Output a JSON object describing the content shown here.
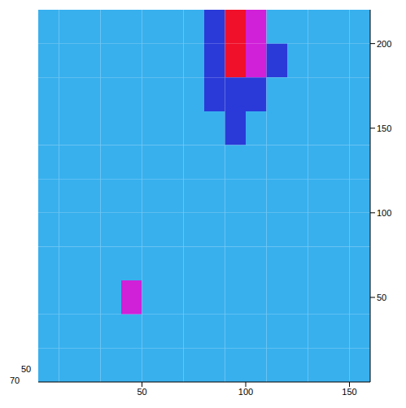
{
  "chart_data": {
    "type": "heatmap",
    "xlim": [
      0,
      160
    ],
    "ylim": [
      0,
      220
    ],
    "xticks": [
      50,
      100,
      150
    ],
    "yticks": [
      50,
      100,
      150,
      200
    ],
    "x_edges": [
      0,
      10,
      20,
      30,
      40,
      50,
      60,
      70,
      80,
      90,
      100,
      110,
      120,
      130,
      140,
      150,
      160
    ],
    "y_edges": [
      220,
      200,
      180,
      160,
      140,
      120,
      100,
      80,
      60,
      40,
      20,
      0
    ],
    "cells": [
      [
        0.45,
        0.45,
        0.45,
        0.45,
        0.45,
        0.45,
        0.45,
        0.45,
        0.2,
        1.0,
        0.8,
        0.45,
        0.45,
        0.45,
        0.45,
        0.45
      ],
      [
        0.45,
        0.45,
        0.45,
        0.45,
        0.45,
        0.45,
        0.45,
        0.45,
        0.2,
        1.0,
        0.8,
        0.2,
        0.45,
        0.45,
        0.45,
        0.45
      ],
      [
        0.45,
        0.45,
        0.45,
        0.45,
        0.45,
        0.45,
        0.45,
        0.45,
        0.2,
        0.2,
        0.2,
        0.45,
        0.45,
        0.45,
        0.45,
        0.45
      ],
      [
        0.45,
        0.45,
        0.45,
        0.45,
        0.45,
        0.45,
        0.45,
        0.45,
        0.45,
        0.2,
        0.45,
        0.45,
        0.45,
        0.45,
        0.45,
        0.45
      ],
      [
        0.45,
        0.45,
        0.45,
        0.45,
        0.45,
        0.45,
        0.45,
        0.45,
        0.45,
        0.45,
        0.45,
        0.45,
        0.45,
        0.45,
        0.45,
        0.45
      ],
      [
        0.45,
        0.45,
        0.45,
        0.45,
        0.45,
        0.45,
        0.45,
        0.45,
        0.45,
        0.45,
        0.45,
        0.45,
        0.45,
        0.45,
        0.45,
        0.45
      ],
      [
        0.45,
        0.45,
        0.45,
        0.45,
        0.45,
        0.45,
        0.45,
        0.45,
        0.45,
        0.45,
        0.45,
        0.45,
        0.45,
        0.45,
        0.45,
        0.45
      ],
      [
        0.45,
        0.45,
        0.45,
        0.45,
        0.45,
        0.45,
        0.45,
        0.45,
        0.45,
        0.45,
        0.45,
        0.45,
        0.45,
        0.45,
        0.45,
        0.45
      ],
      [
        0.45,
        0.45,
        0.45,
        0.45,
        0.8,
        0.45,
        0.45,
        0.45,
        0.45,
        0.45,
        0.45,
        0.45,
        0.45,
        0.45,
        0.45,
        0.45
      ],
      [
        0.45,
        0.45,
        0.45,
        0.45,
        0.45,
        0.45,
        0.45,
        0.45,
        0.45,
        0.45,
        0.45,
        0.45,
        0.45,
        0.45,
        0.45,
        0.45
      ],
      [
        0.45,
        0.45,
        0.45,
        0.45,
        0.45,
        0.45,
        0.45,
        0.45,
        0.45,
        0.45,
        0.45,
        0.45,
        0.45,
        0.45,
        0.45,
        0.45
      ]
    ],
    "annotations": [
      "50",
      "70"
    ]
  }
}
